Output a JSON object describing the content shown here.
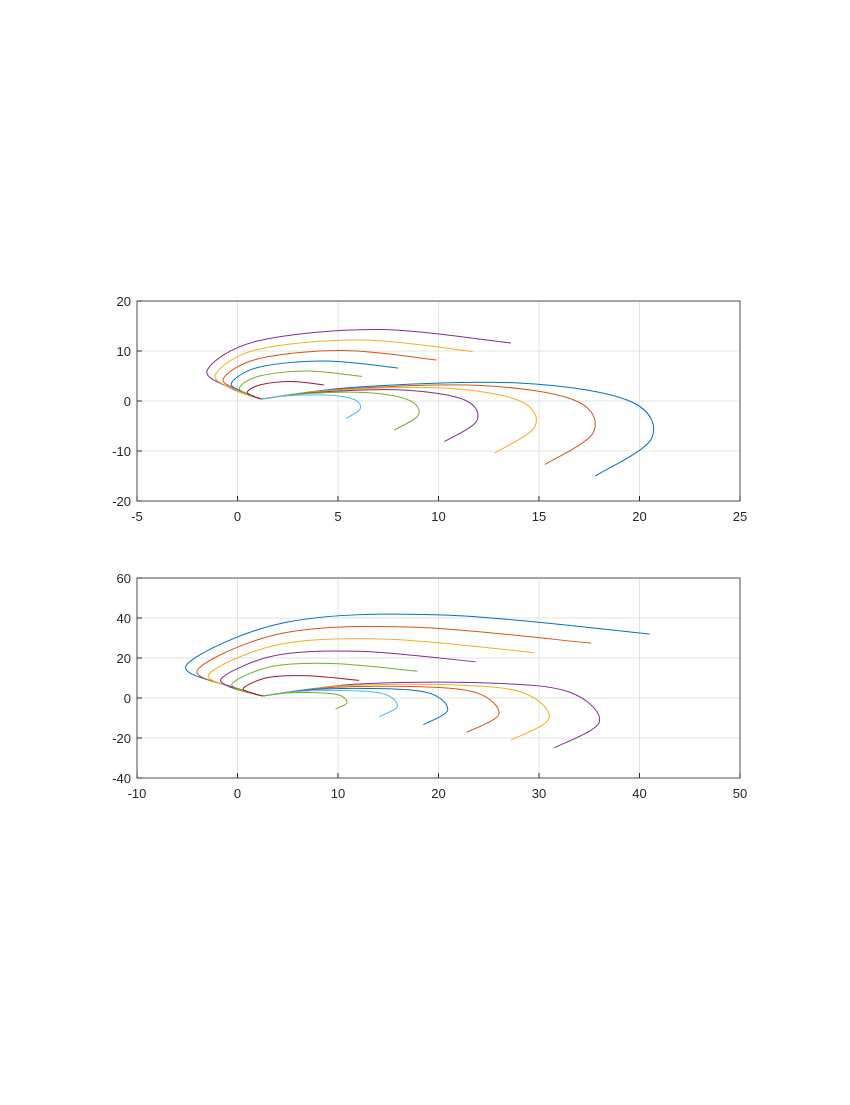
{
  "chart_data": [
    {
      "type": "line",
      "grid": true,
      "xlim": [
        -5,
        25
      ],
      "ylim": [
        -20,
        20
      ],
      "xticks": [
        -5,
        0,
        5,
        10,
        15,
        20,
        25
      ],
      "yticks": [
        -20,
        -10,
        0,
        10,
        20
      ],
      "series": [
        {
          "color": "#7E2F8E",
          "x": [
            13.6,
            7,
            1,
            -1.5,
            -0.3,
            1.2
          ],
          "values": [
            11.6,
            14.3,
            12,
            6.2,
            2.5,
            0.4
          ]
        },
        {
          "color": "#EDB120",
          "x": [
            11.7,
            6.1,
            1.0,
            -1.1,
            -0.1,
            1.2
          ],
          "values": [
            9.9,
            12.2,
            10.3,
            5.3,
            2.2,
            0.4
          ]
        },
        {
          "color": "#D95319",
          "x": [
            9.9,
            5.3,
            1.1,
            -0.7,
            0.2,
            1.2
          ],
          "values": [
            8.2,
            10.1,
            8.5,
            4.5,
            1.9,
            0.4
          ]
        },
        {
          "color": "#0072BD",
          "x": [
            8.0,
            4.4,
            1.1,
            -0.3,
            0.4,
            1.2
          ],
          "values": [
            6.6,
            8.0,
            6.8,
            3.6,
            1.6,
            0.4
          ]
        },
        {
          "color": "#77AC30",
          "x": [
            6.2,
            3.5,
            1.1,
            0.1,
            0.6,
            1.2
          ],
          "values": [
            4.9,
            6.0,
            5.0,
            2.7,
            1.2,
            0.4
          ]
        },
        {
          "color": "#A2142F",
          "x": [
            4.3,
            2.7,
            1.2,
            0.5,
            0.8,
            1.2
          ],
          "values": [
            3.2,
            3.9,
            3.3,
            1.9,
            0.9,
            0.4
          ]
        },
        {
          "color": "#0072BD",
          "x": [
            1.2,
            6.0,
            14.0,
            19.5,
            20.6,
            17.8
          ],
          "values": [
            0.4,
            2.8,
            3.6,
            0,
            -7.5,
            -15
          ]
        },
        {
          "color": "#D95319",
          "x": [
            1.2,
            5.3,
            12.1,
            16.8,
            17.7,
            15.3
          ],
          "values": [
            0.4,
            2.4,
            3.1,
            0.1,
            -6.3,
            -12.7
          ]
        },
        {
          "color": "#EDB120",
          "x": [
            1.2,
            4.6,
            10.2,
            14.0,
            14.8,
            12.8
          ],
          "values": [
            0.4,
            2.1,
            2.6,
            0.1,
            -5.1,
            -10.4
          ]
        },
        {
          "color": "#7E2F8E",
          "x": [
            1.2,
            3.8,
            8.2,
            11.3,
            11.9,
            10.3
          ],
          "values": [
            0.4,
            1.7,
            2.2,
            0.2,
            -4.0,
            -8.1
          ]
        },
        {
          "color": "#77AC30",
          "x": [
            1.2,
            3.1,
            6.3,
            8.5,
            9.0,
            7.8
          ],
          "values": [
            0.4,
            1.4,
            1.7,
            0.2,
            -2.8,
            -5.8
          ]
        },
        {
          "color": "#4DBEEE",
          "x": [
            1.2,
            2.4,
            4.4,
            5.8,
            6.1,
            5.4
          ],
          "values": [
            0.4,
            1.0,
            1.2,
            0.3,
            -1.6,
            -3.5
          ]
        }
      ]
    },
    {
      "type": "line",
      "grid": true,
      "xlim": [
        -10,
        50
      ],
      "ylim": [
        -40,
        60
      ],
      "xticks": [
        -10,
        0,
        10,
        20,
        30,
        40,
        50
      ],
      "yticks": [
        -40,
        -20,
        0,
        20,
        40,
        60
      ],
      "series": [
        {
          "color": "#0072BD",
          "x": [
            41,
            20.5,
            5,
            -5,
            -1,
            2.5
          ],
          "values": [
            32,
            41.5,
            38,
            17,
            6,
            1
          ]
        },
        {
          "color": "#D95319",
          "x": [
            35.2,
            17.8,
            4.6,
            -3.9,
            -0.5,
            2.5
          ],
          "values": [
            27.4,
            35.4,
            32.5,
            14.6,
            5.3,
            1
          ]
        },
        {
          "color": "#EDB120",
          "x": [
            29.5,
            15.1,
            4.3,
            -2.8,
            0.1,
            2.5
          ],
          "values": [
            22.7,
            29.4,
            26.9,
            12.2,
            4.5,
            1
          ]
        },
        {
          "color": "#7E2F8E",
          "x": [
            23.7,
            12.4,
            3.9,
            -1.6,
            0.6,
            2.5
          ],
          "values": [
            18.1,
            23.3,
            21.4,
            9.8,
            3.8,
            1
          ]
        },
        {
          "color": "#77AC30",
          "x": [
            17.9,
            9.7,
            3.5,
            -0.5,
            1.1,
            2.5
          ],
          "values": [
            13.4,
            17.2,
            15.8,
            7.4,
            3.0,
            1
          ]
        },
        {
          "color": "#A2142F",
          "x": [
            12.1,
            7.0,
            3.1,
            0.6,
            1.6,
            2.5
          ],
          "values": [
            8.8,
            11.1,
            10.3,
            5.0,
            2.3,
            1
          ]
        },
        {
          "color": "#7E2F8E",
          "x": [
            2.5,
            12,
            25,
            33,
            36,
            31.5
          ],
          "values": [
            1,
            7,
            7.5,
            3,
            -12,
            -25
          ]
        },
        {
          "color": "#EDB120",
          "x": [
            2.5,
            10.6,
            21.6,
            28.4,
            31.0,
            27.2
          ],
          "values": [
            1,
            6.1,
            6.5,
            2.7,
            -10.1,
            -21.1
          ]
        },
        {
          "color": "#D95319",
          "x": [
            2.5,
            9.2,
            18.3,
            23.9,
            26.0,
            22.8
          ],
          "values": [
            1,
            5.2,
            5.6,
            2.4,
            -8.1,
            -17.2
          ]
        },
        {
          "color": "#0072BD",
          "x": [
            2.5,
            7.7,
            14.9,
            19.3,
            20.9,
            18.5
          ],
          "values": [
            1,
            4.3,
            4.6,
            2.1,
            -6.2,
            -13.3
          ]
        },
        {
          "color": "#4DBEEE",
          "x": [
            2.5,
            6.3,
            11.5,
            14.7,
            15.9,
            14.1
          ],
          "values": [
            1,
            3.4,
            3.6,
            1.8,
            -4.2,
            -9.4
          ]
        },
        {
          "color": "#77AC30",
          "x": [
            2.5,
            4.9,
            8.1,
            10.1,
            10.9,
            9.75
          ],
          "values": [
            1,
            2.5,
            2.6,
            1.5,
            -2.3,
            -5.5
          ]
        }
      ]
    }
  ]
}
